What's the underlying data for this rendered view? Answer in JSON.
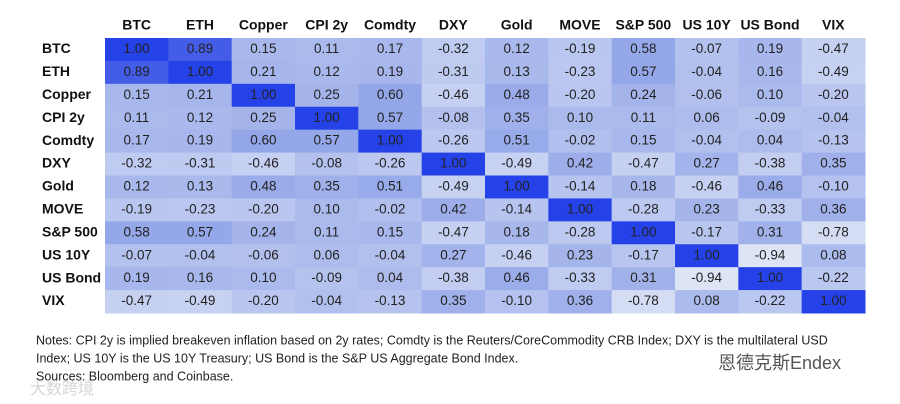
{
  "chart_data": {
    "type": "heatmap",
    "categories": [
      "BTC",
      "ETH",
      "Copper",
      "CPI 2y",
      "Comdty",
      "DXY",
      "Gold",
      "MOVE",
      "S&P 500",
      "US 10Y",
      "US Bond",
      "VIX"
    ],
    "values": [
      [
        1,
        0.89,
        0.15,
        0.11,
        0.17,
        -0.32,
        0.12,
        -0.19,
        0.58,
        -0.07,
        0.19,
        -0.47
      ],
      [
        0.89,
        1,
        0.21,
        0.12,
        0.19,
        -0.31,
        0.13,
        -0.23,
        0.57,
        -0.04,
        0.16,
        -0.49
      ],
      [
        0.15,
        0.21,
        1,
        0.25,
        0.6,
        -0.46,
        0.48,
        -0.2,
        0.24,
        -0.06,
        0.1,
        -0.2
      ],
      [
        0.11,
        0.12,
        0.25,
        1,
        0.57,
        -0.08,
        0.35,
        0.1,
        0.11,
        0.06,
        -0.09,
        -0.04
      ],
      [
        0.17,
        0.19,
        0.6,
        0.57,
        1,
        -0.26,
        0.51,
        -0.02,
        0.15,
        -0.04,
        0.04,
        -0.13
      ],
      [
        -0.32,
        -0.31,
        -0.46,
        -0.08,
        -0.26,
        1,
        -0.49,
        0.42,
        -0.47,
        0.27,
        -0.38,
        0.35
      ],
      [
        0.12,
        0.13,
        0.48,
        0.35,
        0.51,
        -0.49,
        1,
        -0.14,
        0.18,
        -0.46,
        0.46,
        -0.1
      ],
      [
        -0.19,
        -0.23,
        -0.2,
        0.1,
        -0.02,
        0.42,
        -0.14,
        1,
        -0.28,
        0.23,
        -0.33,
        0.36
      ],
      [
        0.58,
        0.57,
        0.24,
        0.11,
        0.15,
        -0.47,
        0.18,
        -0.28,
        1,
        -0.17,
        0.31,
        -0.78
      ],
      [
        -0.07,
        -0.04,
        -0.06,
        0.06,
        -0.04,
        0.27,
        -0.46,
        0.23,
        -0.17,
        1,
        -0.94,
        0.08
      ],
      [
        0.19,
        0.16,
        0.1,
        -0.09,
        0.04,
        -0.38,
        0.46,
        -0.33,
        0.31,
        -0.94,
        1,
        -0.22
      ],
      [
        -0.47,
        -0.49,
        -0.2,
        -0.04,
        -0.13,
        0.35,
        -0.1,
        0.36,
        -0.78,
        0.08,
        -0.22,
        1
      ]
    ],
    "value_labels": [
      [
        "1.00",
        "0.89",
        "0.15",
        "0.11",
        "0.17",
        "-0.32",
        "0.12",
        "-0.19",
        "0.58",
        "-0.07",
        "0.19",
        "-0.47"
      ],
      [
        "0.89",
        "1.00",
        "0.21",
        "0.12",
        "0.19",
        "-0.31",
        "0.13",
        "-0.23",
        "0.57",
        "-0.04",
        "0.16",
        "-0.49"
      ],
      [
        "0.15",
        "0.21",
        "1.00",
        "0.25",
        "0.60",
        "-0.46",
        "0.48",
        "-0.20",
        "0.24",
        "-0.06",
        "0.10",
        "-0.20"
      ],
      [
        "0.11",
        "0.12",
        "0.25",
        "1.00",
        "0.57",
        "-0.08",
        "0.35",
        "0.10",
        "0.11",
        "0.06",
        "-0.09",
        "-0.04"
      ],
      [
        "0.17",
        "0.19",
        "0.60",
        "0.57",
        "1.00",
        "-0.26",
        "0.51",
        "-0.02",
        "0.15",
        "-0.04",
        "0.04",
        "-0.13"
      ],
      [
        "-0.32",
        "-0.31",
        "-0.46",
        "-0.08",
        "-0.26",
        "1.00",
        "-0.49",
        "0.42",
        "-0.47",
        "0.27",
        "-0.38",
        "0.35"
      ],
      [
        "0.12",
        "0.13",
        "0.48",
        "0.35",
        "0.51",
        "-0.49",
        "1.00",
        "-0.14",
        "0.18",
        "-0.46",
        "0.46",
        "-0.10"
      ],
      [
        "-0.19",
        "-0.23",
        "-0.20",
        "0.10",
        "-0.02",
        "0.42",
        "-0.14",
        "1.00",
        "-0.28",
        "0.23",
        "-0.33",
        "0.36"
      ],
      [
        "0.58",
        "0.57",
        "0.24",
        "0.11",
        "0.15",
        "-0.47",
        "0.18",
        "-0.28",
        "1.00",
        "-0.17",
        "0.31",
        "-0.78"
      ],
      [
        "-0.07",
        "-0.04",
        "-0.06",
        "0.06",
        "-0.04",
        "0.27",
        "-0.46",
        "0.23",
        "-0.17",
        "1.00",
        "-0.94",
        "0.08"
      ],
      [
        "0.19",
        "0.16",
        "0.10",
        "-0.09",
        "0.04",
        "-0.38",
        "0.46",
        "-0.33",
        "0.31",
        "-0.94",
        "1.00",
        "-0.22"
      ],
      [
        "-0.47",
        "-0.49",
        "-0.20",
        "-0.04",
        "-0.13",
        "0.35",
        "-0.10",
        "0.36",
        "-0.78",
        "0.08",
        "-0.22",
        "1.00"
      ]
    ],
    "colorscale": [
      [
        -1,
        "#e0e6f7"
      ],
      [
        0.6,
        "#93a6e8"
      ],
      [
        1,
        "#2442e8"
      ]
    ],
    "notes": [
      "Notes: CPI 2y is implied breakeven inflation based on 2y rates; Comdty is the Reuters/CoreCommodity CRB Index; DXY is the multilateral USD",
      "Index; US 10Y is the US 10Y Treasury; US Bond is the S&P US Aggregate Bond Index.",
      "Sources: Bloomberg and Coinbase."
    ],
    "watermarks": [
      "恩德克斯Endex",
      "大数跨境"
    ]
  }
}
